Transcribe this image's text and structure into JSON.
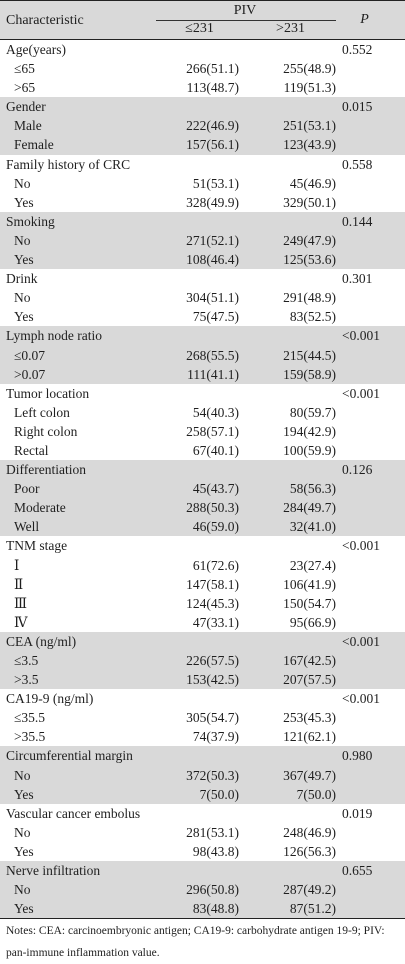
{
  "table": {
    "header": {
      "characteristic": "Characteristic",
      "piv": "PIV",
      "col_low": "≤231",
      "col_high": ">231",
      "p": "P"
    },
    "groups": [
      {
        "label": "Age(years)",
        "p": "0.552",
        "shaded": false,
        "rows": [
          {
            "label": "≤65",
            "low": "266(51.1)",
            "high": "255(48.9)"
          },
          {
            "label": ">65",
            "low": "113(48.7)",
            "high": "119(51.3)"
          }
        ]
      },
      {
        "label": "Gender",
        "p": "0.015",
        "shaded": true,
        "rows": [
          {
            "label": "Male",
            "low": "222(46.9)",
            "high": "251(53.1)"
          },
          {
            "label": "Female",
            "low": "157(56.1)",
            "high": "123(43.9)"
          }
        ]
      },
      {
        "label": "Family history of CRC",
        "p": "0.558",
        "shaded": false,
        "rows": [
          {
            "label": "No",
            "low": "51(53.1)",
            "high": "45(46.9)"
          },
          {
            "label": "Yes",
            "low": "328(49.9)",
            "high": "329(50.1)"
          }
        ]
      },
      {
        "label": "Smoking",
        "p": "0.144",
        "shaded": true,
        "rows": [
          {
            "label": "No",
            "low": "271(52.1)",
            "high": "249(47.9)"
          },
          {
            "label": "Yes",
            "low": "108(46.4)",
            "high": "125(53.6)"
          }
        ]
      },
      {
        "label": "Drink",
        "p": "0.301",
        "shaded": false,
        "rows": [
          {
            "label": "No",
            "low": "304(51.1)",
            "high": "291(48.9)"
          },
          {
            "label": "Yes",
            "low": "75(47.5)",
            "high": "83(52.5)"
          }
        ]
      },
      {
        "label": "Lymph node ratio",
        "p": "<0.001",
        "shaded": true,
        "rows": [
          {
            "label": "≤0.07",
            "low": "268(55.5)",
            "high": "215(44.5)"
          },
          {
            "label": ">0.07",
            "low": "111(41.1)",
            "high": "159(58.9)"
          }
        ]
      },
      {
        "label": "Tumor location",
        "p": "<0.001",
        "shaded": false,
        "rows": [
          {
            "label": "Left colon",
            "low": "54(40.3)",
            "high": "80(59.7)"
          },
          {
            "label": "Right colon",
            "low": "258(57.1)",
            "high": "194(42.9)"
          },
          {
            "label": "Rectal",
            "low": "67(40.1)",
            "high": "100(59.9)"
          }
        ]
      },
      {
        "label": "Differentiation",
        "p": "0.126",
        "shaded": true,
        "rows": [
          {
            "label": "Poor",
            "low": "45(43.7)",
            "high": "58(56.3)"
          },
          {
            "label": "Moderate",
            "low": "288(50.3)",
            "high": "284(49.7)"
          },
          {
            "label": "Well",
            "low": "46(59.0)",
            "high": "32(41.0)"
          }
        ]
      },
      {
        "label": "TNM stage",
        "p": "<0.001",
        "shaded": false,
        "rows": [
          {
            "label": "Ⅰ",
            "low": "61(72.6)",
            "high": "23(27.4)"
          },
          {
            "label": "Ⅱ",
            "low": "147(58.1)",
            "high": "106(41.9)"
          },
          {
            "label": "Ⅲ",
            "low": "124(45.3)",
            "high": "150(54.7)"
          },
          {
            "label": "Ⅳ",
            "low": "47(33.1)",
            "high": "95(66.9)"
          }
        ]
      },
      {
        "label": "CEA (ng/ml)",
        "p": "<0.001",
        "shaded": true,
        "rows": [
          {
            "label": "≤3.5",
            "low": "226(57.5)",
            "high": "167(42.5)"
          },
          {
            "label": ">3.5",
            "low": "153(42.5)",
            "high": "207(57.5)"
          }
        ]
      },
      {
        "label": "CA19-9 (ng/ml)",
        "p": "<0.001",
        "shaded": false,
        "rows": [
          {
            "label": "≤35.5",
            "low": "305(54.7)",
            "high": "253(45.3)"
          },
          {
            "label": ">35.5",
            "low": "74(37.9)",
            "high": "121(62.1)"
          }
        ]
      },
      {
        "label": "Circumferential margin",
        "p": "0.980",
        "shaded": true,
        "rows": [
          {
            "label": "No",
            "low": "372(50.3)",
            "high": "367(49.7)"
          },
          {
            "label": "Yes",
            "low": "7(50.0)",
            "high": "7(50.0)"
          }
        ]
      },
      {
        "label": "Vascular cancer embolus",
        "p": "0.019",
        "shaded": false,
        "rows": [
          {
            "label": "No",
            "low": "281(53.1)",
            "high": "248(46.9)"
          },
          {
            "label": "Yes",
            "low": "98(43.8)",
            "high": "126(56.3)"
          }
        ]
      },
      {
        "label": "Nerve infiltration",
        "p": "0.655",
        "shaded": true,
        "rows": [
          {
            "label": "No",
            "low": "296(50.8)",
            "high": "287(49.2)"
          },
          {
            "label": "Yes",
            "low": "83(48.8)",
            "high": "87(51.2)"
          }
        ]
      }
    ]
  },
  "notes": "Notes: CEA: carcinoembryonic antigen; CA19-9: carbohydrate antigen 19-9; PIV: pan-immune inflammation value."
}
